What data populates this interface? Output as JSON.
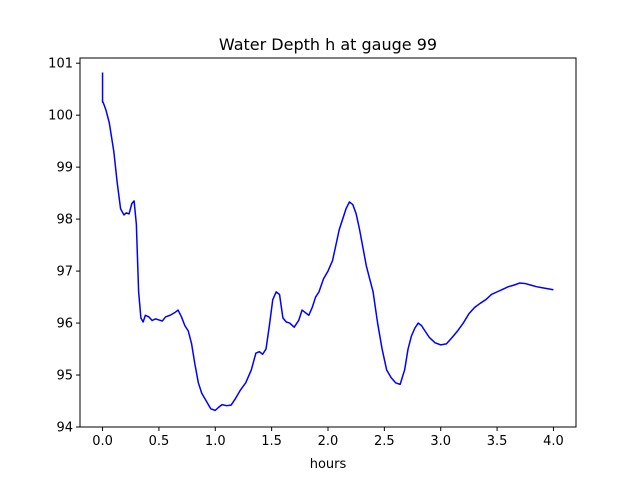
{
  "chart_data": {
    "type": "line",
    "title": "Water Depth h at gauge 99",
    "xlabel": "hours",
    "ylabel": "",
    "xlim": [
      -0.2,
      4.2
    ],
    "ylim": [
      94,
      101.1
    ],
    "xticks": [
      0.0,
      0.5,
      1.0,
      1.5,
      2.0,
      2.5,
      3.0,
      3.5,
      4.0
    ],
    "xtick_labels": [
      "0.0",
      "0.5",
      "1.0",
      "1.5",
      "2.0",
      "2.5",
      "3.0",
      "3.5",
      "4.0"
    ],
    "yticks": [
      94,
      95,
      96,
      97,
      98,
      99,
      100,
      101
    ],
    "ytick_labels": [
      "94",
      "95",
      "96",
      "97",
      "98",
      "99",
      "100",
      "101"
    ],
    "grid": false,
    "series": [
      {
        "color": "#0000ff",
        "x": [
          0.0,
          0.0,
          0.0,
          0.01,
          0.03,
          0.06,
          0.1,
          0.13,
          0.16,
          0.19,
          0.21,
          0.235,
          0.26,
          0.28,
          0.3,
          0.32,
          0.34,
          0.36,
          0.38,
          0.41,
          0.44,
          0.47,
          0.5,
          0.53,
          0.56,
          0.6,
          0.64,
          0.67,
          0.7,
          0.73,
          0.76,
          0.79,
          0.82,
          0.85,
          0.88,
          0.92,
          0.96,
          1.0,
          1.03,
          1.06,
          1.1,
          1.14,
          1.18,
          1.22,
          1.27,
          1.32,
          1.36,
          1.39,
          1.42,
          1.45,
          1.48,
          1.51,
          1.54,
          1.57,
          1.6,
          1.63,
          1.66,
          1.7,
          1.74,
          1.77,
          1.8,
          1.83,
          1.86,
          1.89,
          1.92,
          1.96,
          2.0,
          2.04,
          2.07,
          2.1,
          2.13,
          2.16,
          2.19,
          2.22,
          2.25,
          2.28,
          2.31,
          2.34,
          2.37,
          2.4,
          2.44,
          2.48,
          2.52,
          2.56,
          2.6,
          2.64,
          2.68,
          2.71,
          2.74,
          2.77,
          2.8,
          2.83,
          2.86,
          2.9,
          2.95,
          3.0,
          3.05,
          3.1,
          3.15,
          3.2,
          3.25,
          3.3,
          3.35,
          3.4,
          3.45,
          3.5,
          3.55,
          3.6,
          3.65,
          3.7,
          3.75,
          3.8,
          3.85,
          3.9,
          3.95,
          4.0
        ],
        "y": [
          100.82,
          100.25,
          100.27,
          100.22,
          100.1,
          99.85,
          99.3,
          98.7,
          98.2,
          98.08,
          98.12,
          98.1,
          98.3,
          98.35,
          97.9,
          96.6,
          96.1,
          96.02,
          96.15,
          96.12,
          96.05,
          96.08,
          96.06,
          96.04,
          96.12,
          96.15,
          96.2,
          96.25,
          96.12,
          95.95,
          95.85,
          95.6,
          95.2,
          94.85,
          94.65,
          94.5,
          94.35,
          94.32,
          94.38,
          94.43,
          94.41,
          94.42,
          94.55,
          94.7,
          94.85,
          95.1,
          95.42,
          95.45,
          95.4,
          95.5,
          95.95,
          96.45,
          96.6,
          96.55,
          96.1,
          96.02,
          96.0,
          95.92,
          96.05,
          96.25,
          96.2,
          96.15,
          96.3,
          96.5,
          96.6,
          96.85,
          97.0,
          97.2,
          97.5,
          97.8,
          98.0,
          98.2,
          98.33,
          98.28,
          98.1,
          97.8,
          97.45,
          97.1,
          96.85,
          96.6,
          96.0,
          95.5,
          95.1,
          94.95,
          94.85,
          94.82,
          95.1,
          95.5,
          95.75,
          95.9,
          96.0,
          95.95,
          95.85,
          95.72,
          95.62,
          95.58,
          95.6,
          95.72,
          95.85,
          96.0,
          96.18,
          96.3,
          96.38,
          96.45,
          96.55,
          96.6,
          96.65,
          96.7,
          96.73,
          96.77,
          96.76,
          96.73,
          96.7,
          96.68,
          96.66,
          96.64
        ]
      }
    ]
  }
}
